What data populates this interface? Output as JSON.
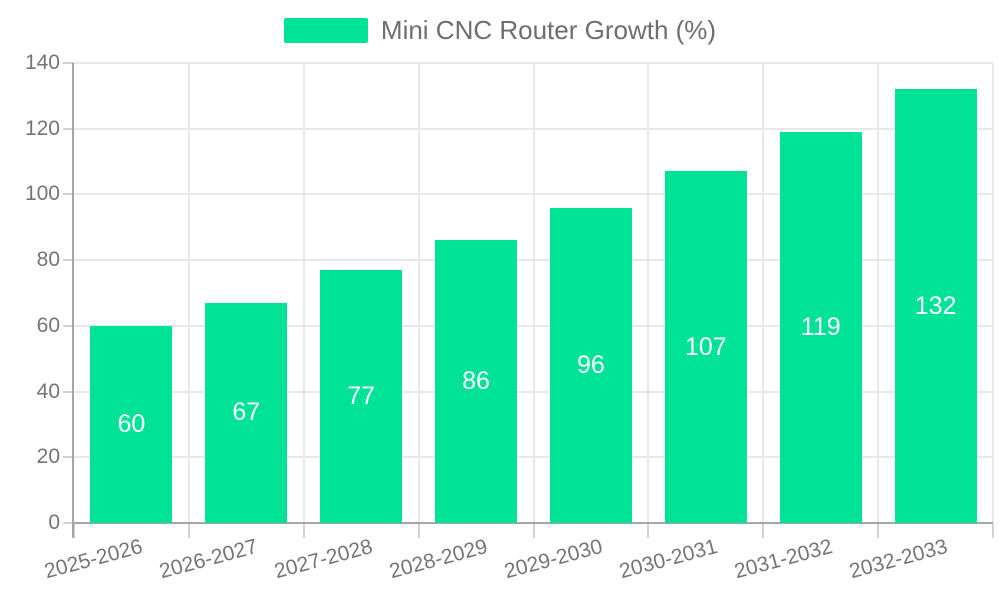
{
  "chart_data": {
    "type": "bar",
    "title": "Mini CNC Router Growth (%)",
    "categories": [
      "2025-2026",
      "2026-2027",
      "2027-2028",
      "2028-2029",
      "2029-2030",
      "2030-2031",
      "2031-2032",
      "2032-2033"
    ],
    "series": [
      {
        "name": "Mini CNC Router Growth (%)",
        "values": [
          60,
          67,
          77,
          86,
          96,
          107,
          119,
          132
        ]
      }
    ],
    "xlabel": "",
    "ylabel": "",
    "ylim": [
      0,
      140
    ],
    "yticks": [
      0,
      20,
      40,
      60,
      80,
      100,
      120,
      140
    ],
    "grid": true,
    "legend_position": "top",
    "x_label_rotation_deg": -15,
    "value_labels": "inside-center",
    "colors": {
      "bar": "#00E396",
      "value_label": "#FFFFFF",
      "axis_line": "#A6A6A6",
      "tick_mark": "#D2D2D2",
      "gridline": "#E8E8E8",
      "tick_label": "#757575",
      "legend_text": "#6E6E6E"
    }
  }
}
